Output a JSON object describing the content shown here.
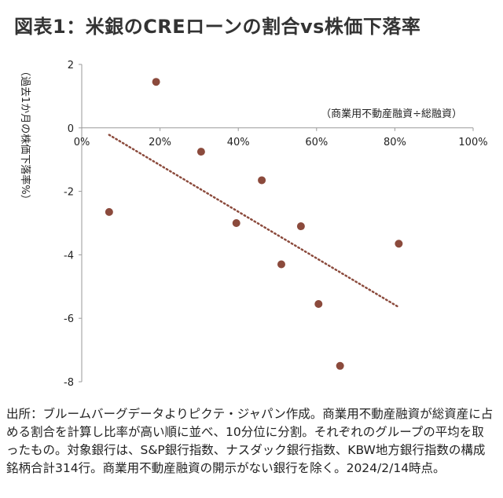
{
  "header": {
    "title": "図表1：米銀のCREローンの割合vs株価下落率"
  },
  "chart_data": {
    "type": "scatter",
    "xlabel": "（商業用不動産融資÷総融資）",
    "ylabel": "（過去1か月の株価下落率%）",
    "xlim": [
      0,
      100
    ],
    "ylim": [
      -8,
      2
    ],
    "x_ticks": [
      0,
      20,
      40,
      60,
      80,
      100
    ],
    "x_tick_labels": [
      "0%",
      "20%",
      "40%",
      "60%",
      "80%",
      "100%"
    ],
    "y_ticks": [
      2,
      0,
      -2,
      -4,
      -6,
      -8
    ],
    "y_tick_labels": [
      "2",
      "0",
      "-2",
      "-4",
      "-6",
      "-8"
    ],
    "points": [
      {
        "x": 7,
        "y": -2.65
      },
      {
        "x": 19,
        "y": 1.45
      },
      {
        "x": 30.5,
        "y": -0.75
      },
      {
        "x": 39.5,
        "y": -3.0
      },
      {
        "x": 46,
        "y": -1.65
      },
      {
        "x": 51,
        "y": -4.3
      },
      {
        "x": 56,
        "y": -3.1
      },
      {
        "x": 60.5,
        "y": -5.55
      },
      {
        "x": 66,
        "y": -7.5
      },
      {
        "x": 81,
        "y": -3.65
      }
    ],
    "trendline": {
      "style": "dotted",
      "from": {
        "x": 7,
        "y": -0.22
      },
      "to": {
        "x": 81,
        "y": -5.65
      }
    },
    "colors": {
      "point": "#8B4A3C",
      "trendline": "#8B4A3C",
      "axis": "#9a9a9a"
    },
    "grid": false,
    "legend": "none"
  },
  "footer": {
    "source": "出所：ブルームバーグデータよりピクテ・ジャパン作成。商業用不動産融資が総資産に占める割合を計算し比率が高い順に並べ、10分位に分割。それぞれのグループの平均を取ったもの。対象銀行は、S&P銀行指数、ナスダック銀行指数、KBW地方銀行指数の構成銘柄合計314行。商業用不動産融資の開示がない銀行を除く。2024/2/14時点。"
  }
}
